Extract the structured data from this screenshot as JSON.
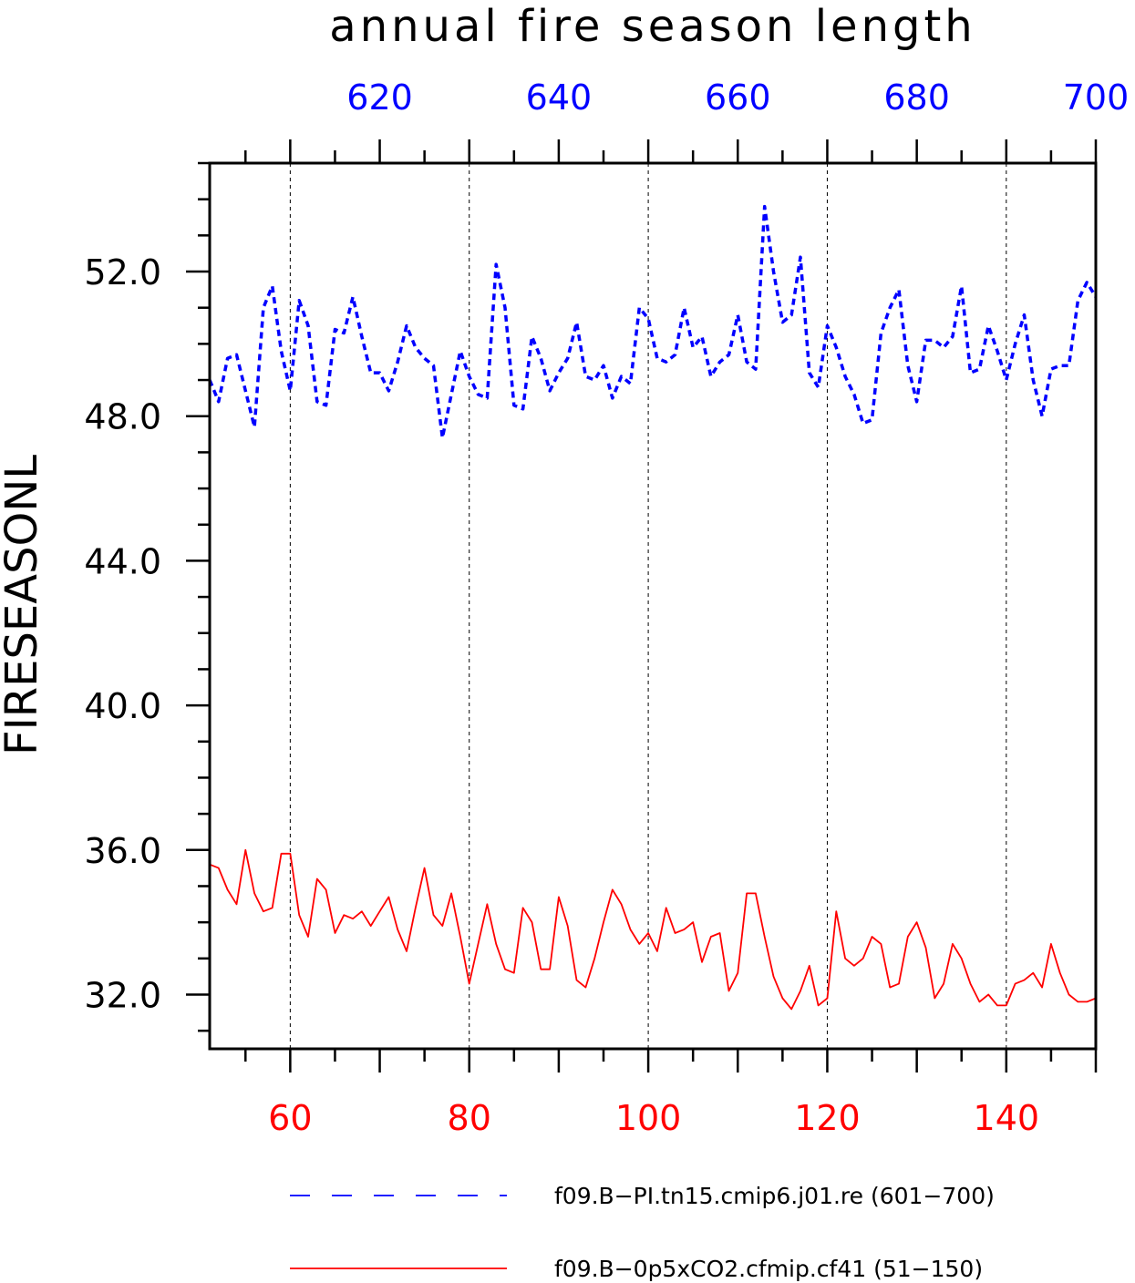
{
  "chart_data": {
    "type": "line",
    "title": "annual fire season length",
    "ylabel": "FIRESEASONL",
    "ylim": [
      30.5,
      55.0
    ],
    "yticks": [
      32.0,
      36.0,
      40.0,
      44.0,
      48.0,
      52.0
    ],
    "ytick_labels": [
      "32.0",
      "36.0",
      "40.0",
      "44.0",
      "48.0",
      "52.0"
    ],
    "grid": "vertical-dashed",
    "legend_position": "bottom",
    "bottom_axis": {
      "color": "#ff0000",
      "range": [
        51,
        150
      ],
      "ticks": [
        60,
        80,
        100,
        120,
        140
      ],
      "tick_labels": [
        "60",
        "80",
        "100",
        "120",
        "140"
      ]
    },
    "top_axis": {
      "color": "#0000ff",
      "range": [
        601,
        700
      ],
      "ticks": [
        620,
        640,
        660,
        680,
        700
      ],
      "tick_labels": [
        "620",
        "640",
        "660",
        "680",
        "700"
      ]
    },
    "series": [
      {
        "name": "f09.B−PI.tn15.cmip6.j01.re (601−700)",
        "color": "#0000ff",
        "style": "dashed",
        "axis": "top",
        "x_start": 601,
        "values": [
          49.0,
          48.4,
          49.6,
          49.7,
          48.7,
          47.7,
          51.0,
          51.6,
          49.8,
          48.7,
          51.2,
          50.5,
          48.4,
          48.3,
          50.4,
          50.3,
          51.3,
          50.2,
          49.2,
          49.2,
          48.7,
          49.5,
          50.5,
          49.9,
          49.6,
          49.4,
          47.4,
          48.6,
          49.8,
          49.1,
          48.6,
          48.5,
          52.2,
          51.0,
          48.3,
          48.2,
          50.2,
          49.6,
          48.7,
          49.2,
          49.6,
          50.6,
          49.1,
          49.0,
          49.4,
          48.5,
          49.1,
          48.9,
          51.0,
          50.7,
          49.6,
          49.5,
          49.7,
          51.0,
          49.9,
          50.2,
          49.1,
          49.5,
          49.7,
          50.8,
          49.5,
          49.3,
          53.8,
          52.0,
          50.6,
          50.8,
          52.4,
          49.2,
          48.8,
          50.5,
          49.9,
          49.1,
          48.6,
          47.8,
          47.9,
          50.3,
          51.0,
          51.5,
          49.4,
          48.4,
          50.1,
          50.1,
          49.9,
          50.2,
          51.6,
          49.2,
          49.3,
          50.5,
          49.8,
          49.0,
          50.0,
          50.8,
          49.0,
          48.0,
          49.3,
          49.4,
          49.4,
          51.2,
          51.7,
          51.3
        ]
      },
      {
        "name": "f09.B−0p5xCO2.cfmip.cf41 (51−150)",
        "color": "#ff0000",
        "style": "solid",
        "axis": "bottom",
        "x_start": 51,
        "values": [
          35.6,
          35.5,
          34.9,
          34.5,
          36.0,
          34.8,
          34.3,
          34.4,
          35.9,
          35.9,
          34.2,
          33.6,
          35.2,
          34.9,
          33.7,
          34.2,
          34.1,
          34.3,
          33.9,
          34.3,
          34.7,
          33.8,
          33.2,
          34.4,
          35.5,
          34.2,
          33.9,
          34.8,
          33.6,
          32.3,
          33.4,
          34.5,
          33.4,
          32.7,
          32.6,
          34.4,
          34.0,
          32.7,
          32.7,
          34.7,
          33.9,
          32.4,
          32.2,
          33.0,
          34.0,
          34.9,
          34.5,
          33.8,
          33.4,
          33.7,
          33.2,
          34.4,
          33.7,
          33.8,
          34.0,
          32.9,
          33.6,
          33.7,
          32.1,
          32.6,
          34.8,
          34.8,
          33.6,
          32.5,
          31.9,
          31.6,
          32.1,
          32.8,
          31.7,
          31.9,
          34.3,
          33.0,
          32.8,
          33.0,
          33.6,
          33.4,
          32.2,
          32.3,
          33.6,
          34.0,
          33.3,
          31.9,
          32.3,
          33.4,
          33.0,
          32.3,
          31.8,
          32.0,
          31.7,
          31.7,
          32.3,
          32.4,
          32.6,
          32.2,
          33.4,
          32.6,
          32.0,
          31.8,
          31.8,
          31.9
        ]
      }
    ]
  }
}
